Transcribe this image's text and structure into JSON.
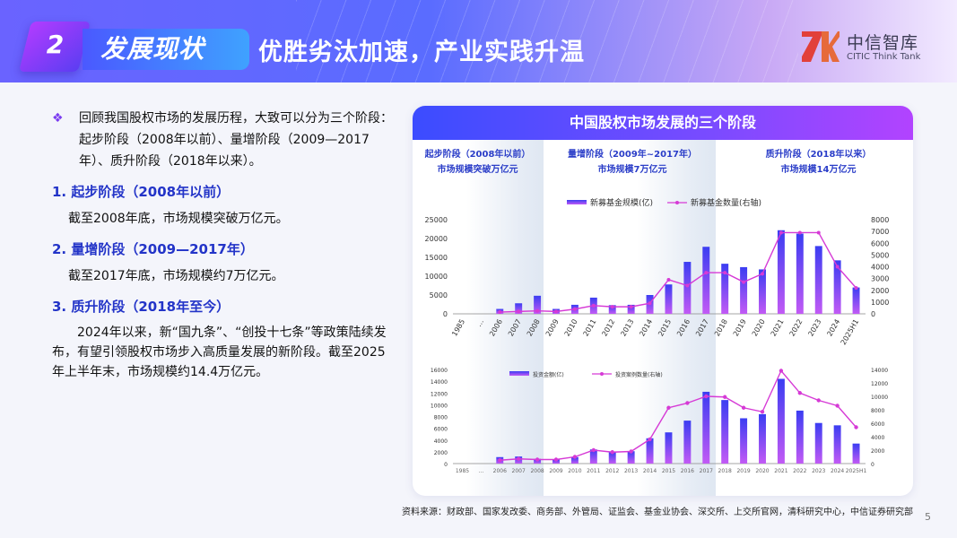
{
  "header": {
    "section_number": "2",
    "section_title": "发展现状",
    "main_title": "优胜劣汰加速，产业实践升温",
    "logo_cn": "中信智库",
    "logo_en": "CITIC Think Tank"
  },
  "left": {
    "intro": "回顾我国股权市场的发展历程，大致可以分为三个阶段：起步阶段（2008年以前）、量增阶段（2009—2017年）、质升阶段（2018年以来）。",
    "stage1_head": "1. 起步阶段（2008年以前）",
    "stage1_text": "截至2008年底，市场规模突破万亿元。",
    "stage2_head": "2. 量增阶段（2009—2017年）",
    "stage2_text": "截至2017年底，市场规模约7万亿元。",
    "stage3_head": "3. 质升阶段（2018年至今）",
    "stage3_text": "2024年以来，新“国九条”、“创投十七条”等政策陆续发布，有望引领股权市场步入高质量发展的新阶段。截至2025年上半年末，市场规模约14.4万亿元。"
  },
  "panel": {
    "title": "中国股权市场发展的三个阶段",
    "phases": [
      {
        "name": "起步阶段（2008年以前）",
        "desc": "市场规模突破万亿元"
      },
      {
        "name": "量增阶段（2009年~2017年）",
        "desc": "市场规模7万亿元"
      },
      {
        "name": "质升阶段（2018年以来）",
        "desc": "市场规模14万亿元"
      }
    ]
  },
  "colors": {
    "bar_top": "#3b3df2",
    "bar_bottom": "#c25af5",
    "line": "#d63ad6",
    "accent": "#2334c8"
  },
  "chart_data": [
    {
      "type": "bar",
      "categories": [
        "1985",
        "…",
        "2006",
        "2007",
        "2008",
        "2009",
        "2010",
        "2011",
        "2012",
        "2013",
        "2014",
        "2015",
        "2016",
        "2017",
        "2018",
        "2019",
        "2020",
        "2021",
        "2022",
        "2023",
        "2024",
        "2025H1"
      ],
      "series": [
        {
          "name": "新募基金规模(亿)",
          "axis": "left",
          "values": [
            0,
            null,
            1300,
            2800,
            4800,
            1300,
            2400,
            4300,
            2300,
            2400,
            5000,
            7800,
            13800,
            17800,
            13300,
            12400,
            11800,
            22200,
            21300,
            18000,
            14200,
            7000
          ]
        },
        {
          "name": "新募基金数量(右轴)",
          "type": "line",
          "axis": "right",
          "values": [
            0,
            null,
            150,
            200,
            250,
            200,
            400,
            700,
            600,
            600,
            900,
            2900,
            2400,
            3500,
            3500,
            2700,
            3400,
            6900,
            6900,
            6900,
            4000,
            2200
          ]
        }
      ],
      "ylim": [
        0,
        25000
      ],
      "yticks": [
        0,
        5000,
        10000,
        15000,
        20000,
        25000
      ],
      "y2lim": [
        0,
        8000
      ],
      "y2ticks": [
        0,
        1000,
        2000,
        3000,
        4000,
        5000,
        6000,
        7000,
        8000
      ],
      "legend": "top-center"
    },
    {
      "type": "bar",
      "categories": [
        "1985",
        "…",
        "2006",
        "2007",
        "2008",
        "2009",
        "2010",
        "2011",
        "2012",
        "2013",
        "2014",
        "2015",
        "2016",
        "2017",
        "2018",
        "2019",
        "2020",
        "2021",
        "2022",
        "2023",
        "2024",
        "2025H1"
      ],
      "series": [
        {
          "name": "投资金额(亿)",
          "axis": "left",
          "values": [
            0,
            null,
            1100,
            1200,
            800,
            700,
            1100,
            2400,
            2000,
            2100,
            4300,
            5300,
            7300,
            12200,
            10800,
            7700,
            8400,
            14400,
            9000,
            6900,
            6500,
            3400
          ]
        },
        {
          "name": "投资案例数量(右轴)",
          "type": "line",
          "axis": "right",
          "values": [
            0,
            null,
            500,
            700,
            600,
            600,
            1000,
            2000,
            1700,
            1800,
            3600,
            8300,
            9000,
            10000,
            9900,
            8300,
            7700,
            13800,
            10500,
            9400,
            8600,
            5400
          ]
        }
      ],
      "ylim": [
        0,
        16000
      ],
      "yticks": [
        0,
        2000,
        4000,
        6000,
        8000,
        10000,
        12000,
        14000,
        16000
      ],
      "y2lim": [
        0,
        14000
      ],
      "y2ticks": [
        0,
        2000,
        4000,
        6000,
        8000,
        10000,
        12000,
        14000
      ],
      "legend": "top-center"
    }
  ],
  "footer": {
    "source": "资料来源：财政部、国家发改委、商务部、外管局、证监会、基金业协会、深交所、上交所官网，清科研究中心，中信证券研究部",
    "page": "5"
  }
}
